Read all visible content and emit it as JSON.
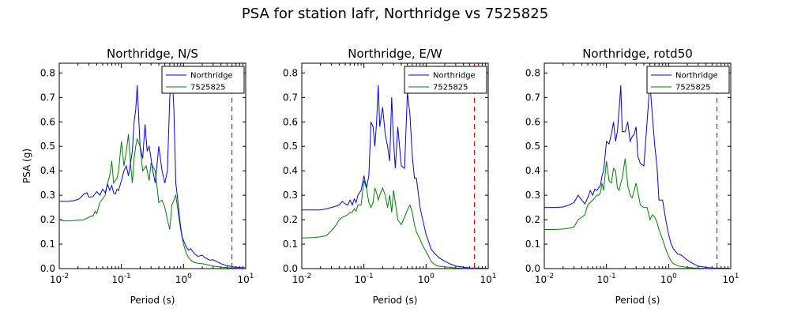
{
  "figure": {
    "title": "PSA for station lafr, Northridge vs 7525825"
  },
  "chart_data": [
    {
      "type": "line",
      "title": "Northridge, N/S",
      "xlabel": "Period (s)",
      "ylabel": "PSA (g)",
      "xscale": "log",
      "xlim": [
        0.01,
        10
      ],
      "ylim": [
        0,
        0.84
      ],
      "x_ticks": [
        {
          "base": "10",
          "exp": "-2",
          "value": 0.01
        },
        {
          "base": "10",
          "exp": "-1",
          "value": 0.1
        },
        {
          "base": "10",
          "exp": "0",
          "value": 1
        },
        {
          "base": "10",
          "exp": "1",
          "value": 10
        }
      ],
      "y_ticks": [
        "0.0",
        "0.1",
        "0.2",
        "0.3",
        "0.4",
        "0.5",
        "0.6",
        "0.7",
        "0.8"
      ],
      "legend_position": "top-right",
      "vline": {
        "x": 6,
        "color": "#ff0000",
        "style": "dashed"
      },
      "series": [
        {
          "name": "Northridge",
          "color": "#0000ff",
          "x": [
            0.01,
            0.014,
            0.017,
            0.02,
            0.022,
            0.025,
            0.028,
            0.03,
            0.035,
            0.04,
            0.045,
            0.05,
            0.055,
            0.06,
            0.065,
            0.07,
            0.075,
            0.08,
            0.085,
            0.09,
            0.1,
            0.11,
            0.12,
            0.13,
            0.14,
            0.15,
            0.16,
            0.17,
            0.18,
            0.2,
            0.22,
            0.24,
            0.26,
            0.28,
            0.3,
            0.32,
            0.35,
            0.4,
            0.45,
            0.5,
            0.55,
            0.6,
            0.65,
            0.7,
            0.75,
            0.8,
            0.85,
            0.9,
            0.95,
            1.0,
            1.1,
            1.2,
            1.3,
            1.5,
            1.7,
            2.0,
            2.2,
            2.4,
            2.6,
            3.0,
            3.5,
            4.0,
            5.0,
            6.0,
            7.5,
            10.0
          ],
          "y": [
            0.275,
            0.275,
            0.278,
            0.283,
            0.29,
            0.305,
            0.31,
            0.292,
            0.295,
            0.315,
            0.3,
            0.325,
            0.31,
            0.345,
            0.32,
            0.34,
            0.31,
            0.305,
            0.325,
            0.32,
            0.36,
            0.4,
            0.42,
            0.38,
            0.43,
            0.48,
            0.6,
            0.65,
            0.75,
            0.5,
            0.45,
            0.59,
            0.48,
            0.5,
            0.45,
            0.4,
            0.35,
            0.5,
            0.4,
            0.35,
            0.4,
            0.7,
            0.82,
            0.65,
            0.35,
            0.29,
            0.22,
            0.17,
            0.13,
            0.115,
            0.09,
            0.075,
            0.082,
            0.06,
            0.05,
            0.055,
            0.045,
            0.04,
            0.035,
            0.036,
            0.028,
            0.02,
            0.012,
            0.008,
            0.005,
            0.003
          ]
        },
        {
          "name": "7525825",
          "color": "#008000",
          "x": [
            0.01,
            0.012,
            0.015,
            0.02,
            0.025,
            0.03,
            0.033,
            0.035,
            0.038,
            0.04,
            0.045,
            0.05,
            0.055,
            0.06,
            0.065,
            0.07,
            0.075,
            0.08,
            0.085,
            0.09,
            0.1,
            0.11,
            0.12,
            0.13,
            0.14,
            0.15,
            0.16,
            0.17,
            0.18,
            0.2,
            0.22,
            0.25,
            0.28,
            0.3,
            0.35,
            0.4,
            0.45,
            0.5,
            0.55,
            0.6,
            0.65,
            0.7,
            0.75,
            0.8,
            0.9,
            1.0,
            1.1,
            1.2,
            1.3,
            1.5,
            1.7,
            2.0,
            2.5,
            3.0,
            4.0,
            5.0,
            6.0,
            7.5,
            10.0
          ],
          "y": [
            0.2,
            0.195,
            0.195,
            0.198,
            0.2,
            0.21,
            0.215,
            0.215,
            0.235,
            0.225,
            0.27,
            0.285,
            0.3,
            0.35,
            0.38,
            0.44,
            0.35,
            0.36,
            0.37,
            0.4,
            0.52,
            0.42,
            0.48,
            0.55,
            0.43,
            0.35,
            0.45,
            0.5,
            0.53,
            0.5,
            0.4,
            0.42,
            0.36,
            0.43,
            0.4,
            0.27,
            0.28,
            0.25,
            0.2,
            0.16,
            0.26,
            0.28,
            0.3,
            0.25,
            0.16,
            0.1,
            0.065,
            0.045,
            0.035,
            0.025,
            0.022,
            0.02,
            0.015,
            0.01,
            0.006,
            0.004,
            0.003,
            0.002,
            0.001
          ]
        }
      ]
    },
    {
      "type": "line",
      "title": "Northridge, E/W",
      "xlabel": "Period (s)",
      "ylabel": "",
      "xscale": "log",
      "xlim": [
        0.01,
        10
      ],
      "ylim": [
        0,
        0.84
      ],
      "x_ticks": [
        {
          "base": "10",
          "exp": "-2",
          "value": 0.01
        },
        {
          "base": "10",
          "exp": "-1",
          "value": 0.1
        },
        {
          "base": "10",
          "exp": "0",
          "value": 1
        },
        {
          "base": "10",
          "exp": "1",
          "value": 10
        }
      ],
      "y_ticks": [
        "0.0",
        "0.1",
        "0.2",
        "0.3",
        "0.4",
        "0.5",
        "0.6",
        "0.7",
        "0.8"
      ],
      "legend_position": "top-right",
      "vline": {
        "x": 6,
        "color": "#ff0000",
        "style": "dashed"
      },
      "series": [
        {
          "name": "Northridge",
          "color": "#0000ff",
          "x": [
            0.01,
            0.015,
            0.02,
            0.025,
            0.03,
            0.035,
            0.04,
            0.045,
            0.05,
            0.055,
            0.06,
            0.065,
            0.07,
            0.075,
            0.08,
            0.085,
            0.09,
            0.1,
            0.11,
            0.12,
            0.13,
            0.14,
            0.15,
            0.16,
            0.17,
            0.18,
            0.2,
            0.22,
            0.24,
            0.26,
            0.28,
            0.3,
            0.32,
            0.35,
            0.4,
            0.45,
            0.5,
            0.55,
            0.6,
            0.65,
            0.7,
            0.8,
            0.9,
            1.0,
            1.1,
            1.2,
            1.4,
            1.6,
            2.0,
            2.5,
            3.0,
            4.0,
            5.0,
            7.0,
            10.0
          ],
          "y": [
            0.24,
            0.24,
            0.24,
            0.245,
            0.25,
            0.255,
            0.26,
            0.275,
            0.265,
            0.26,
            0.28,
            0.26,
            0.285,
            0.27,
            0.3,
            0.31,
            0.32,
            0.38,
            0.33,
            0.38,
            0.6,
            0.58,
            0.5,
            0.6,
            0.75,
            0.58,
            0.66,
            0.55,
            0.5,
            0.44,
            0.7,
            0.52,
            0.41,
            0.58,
            0.42,
            0.41,
            0.72,
            0.63,
            0.46,
            0.37,
            0.37,
            0.25,
            0.19,
            0.14,
            0.11,
            0.08,
            0.06,
            0.045,
            0.03,
            0.018,
            0.01,
            0.006,
            0.003,
            0.002,
            0.001
          ]
        },
        {
          "name": "7525825",
          "color": "#008000",
          "x": [
            0.01,
            0.015,
            0.02,
            0.025,
            0.03,
            0.035,
            0.04,
            0.045,
            0.05,
            0.055,
            0.06,
            0.065,
            0.07,
            0.075,
            0.08,
            0.09,
            0.1,
            0.11,
            0.12,
            0.13,
            0.14,
            0.15,
            0.16,
            0.17,
            0.18,
            0.2,
            0.22,
            0.24,
            0.26,
            0.28,
            0.3,
            0.35,
            0.4,
            0.45,
            0.5,
            0.55,
            0.6,
            0.65,
            0.7,
            0.8,
            0.9,
            1.0,
            1.1,
            1.2,
            1.4,
            1.6,
            2.0,
            2.5,
            3.0,
            4.0,
            5.0,
            7.0,
            10.0
          ],
          "y": [
            0.125,
            0.127,
            0.13,
            0.135,
            0.155,
            0.175,
            0.2,
            0.21,
            0.215,
            0.22,
            0.23,
            0.23,
            0.245,
            0.235,
            0.26,
            0.26,
            0.36,
            0.33,
            0.27,
            0.25,
            0.27,
            0.33,
            0.31,
            0.28,
            0.3,
            0.33,
            0.3,
            0.25,
            0.3,
            0.23,
            0.32,
            0.2,
            0.18,
            0.21,
            0.24,
            0.26,
            0.23,
            0.18,
            0.15,
            0.12,
            0.09,
            0.07,
            0.05,
            0.03,
            0.015,
            0.01,
            0.007,
            0.005,
            0.003,
            0.002,
            0.001,
            0.001,
            0.0005
          ]
        }
      ]
    },
    {
      "type": "line",
      "title": "Northridge, rotd50",
      "xlabel": "Period (s)",
      "ylabel": "",
      "xscale": "log",
      "xlim": [
        0.01,
        10
      ],
      "ylim": [
        0,
        0.84
      ],
      "x_ticks": [
        {
          "base": "10",
          "exp": "-2",
          "value": 0.01
        },
        {
          "base": "10",
          "exp": "-1",
          "value": 0.1
        },
        {
          "base": "10",
          "exp": "0",
          "value": 1
        },
        {
          "base": "10",
          "exp": "1",
          "value": 10
        }
      ],
      "y_ticks": [
        "0.0",
        "0.1",
        "0.2",
        "0.3",
        "0.4",
        "0.5",
        "0.6",
        "0.7",
        "0.8"
      ],
      "legend_position": "top-right",
      "vline": {
        "x": 6,
        "color": "#ff0000",
        "style": "dashed"
      },
      "series": [
        {
          "name": "Northridge",
          "color": "#0000ff",
          "x": [
            0.01,
            0.015,
            0.02,
            0.025,
            0.03,
            0.035,
            0.04,
            0.045,
            0.05,
            0.055,
            0.06,
            0.065,
            0.07,
            0.075,
            0.08,
            0.085,
            0.09,
            0.1,
            0.11,
            0.12,
            0.13,
            0.14,
            0.15,
            0.16,
            0.17,
            0.18,
            0.2,
            0.22,
            0.24,
            0.26,
            0.28,
            0.3,
            0.32,
            0.35,
            0.4,
            0.45,
            0.5,
            0.55,
            0.6,
            0.65,
            0.7,
            0.8,
            0.9,
            1.0,
            1.1,
            1.2,
            1.4,
            1.6,
            2.0,
            2.5,
            3.0,
            4.0,
            5.0,
            7.0,
            10.0
          ],
          "y": [
            0.25,
            0.25,
            0.252,
            0.26,
            0.27,
            0.3,
            0.28,
            0.265,
            0.29,
            0.32,
            0.3,
            0.325,
            0.32,
            0.33,
            0.34,
            0.38,
            0.4,
            0.52,
            0.51,
            0.55,
            0.6,
            0.52,
            0.56,
            0.65,
            0.75,
            0.56,
            0.56,
            0.6,
            0.52,
            0.54,
            0.55,
            0.58,
            0.46,
            0.43,
            0.42,
            0.6,
            0.76,
            0.62,
            0.5,
            0.42,
            0.28,
            0.28,
            0.2,
            0.14,
            0.1,
            0.08,
            0.06,
            0.055,
            0.035,
            0.02,
            0.01,
            0.005,
            0.003,
            0.002,
            0.001
          ]
        },
        {
          "name": "7525825",
          "color": "#008000",
          "x": [
            0.01,
            0.015,
            0.02,
            0.025,
            0.03,
            0.035,
            0.04,
            0.045,
            0.05,
            0.055,
            0.06,
            0.065,
            0.07,
            0.075,
            0.08,
            0.085,
            0.09,
            0.1,
            0.11,
            0.12,
            0.13,
            0.14,
            0.15,
            0.16,
            0.17,
            0.18,
            0.2,
            0.22,
            0.24,
            0.26,
            0.28,
            0.3,
            0.35,
            0.4,
            0.45,
            0.5,
            0.55,
            0.6,
            0.65,
            0.7,
            0.8,
            0.9,
            1.0,
            1.1,
            1.2,
            1.4,
            1.6,
            2.0,
            2.5,
            3.0,
            4.0,
            5.0,
            7.0,
            10.0
          ],
          "y": [
            0.16,
            0.16,
            0.162,
            0.165,
            0.17,
            0.2,
            0.21,
            0.22,
            0.26,
            0.27,
            0.28,
            0.29,
            0.3,
            0.3,
            0.31,
            0.35,
            0.32,
            0.44,
            0.36,
            0.35,
            0.41,
            0.4,
            0.33,
            0.32,
            0.35,
            0.37,
            0.45,
            0.34,
            0.3,
            0.29,
            0.32,
            0.35,
            0.26,
            0.25,
            0.25,
            0.2,
            0.22,
            0.21,
            0.19,
            0.16,
            0.12,
            0.08,
            0.05,
            0.03,
            0.02,
            0.012,
            0.008,
            0.005,
            0.003,
            0.002,
            0.001,
            0.001,
            0.0005,
            0.0003
          ]
        }
      ]
    }
  ]
}
